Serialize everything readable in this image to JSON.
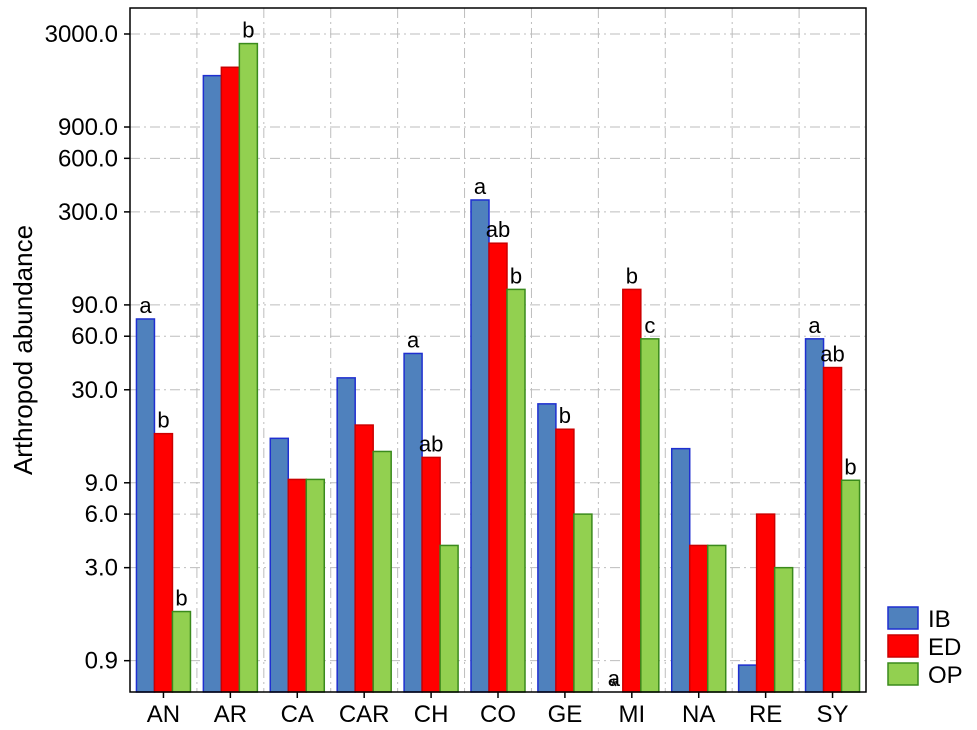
{
  "chart_data": {
    "type": "bar",
    "title": "",
    "xlabel": "",
    "ylabel": "Arthropod abundance",
    "yscale": "log",
    "ylim": [
      0.6,
      4200
    ],
    "y_ticks": [
      0.9,
      3.0,
      6.0,
      9.0,
      30.0,
      60.0,
      90.0,
      300.0,
      600.0,
      900.0,
      3000.0
    ],
    "y_tick_labels": [
      "0.9",
      "3.0",
      "6.0",
      "9.0",
      "30.0",
      "60.0",
      "90.0",
      "300.0",
      "600.0",
      "900.0",
      "3000.0"
    ],
    "grid": true,
    "legend_position": "bottom-right",
    "categories": [
      "AN",
      "AR",
      "CA",
      "CAR",
      "CH",
      "CO",
      "GE",
      "MI",
      "NA",
      "RE",
      "SY"
    ],
    "series": [
      {
        "name": "IB",
        "color": "#4f81bd",
        "edge": "#1f2fd0",
        "values": [
          75,
          1750,
          16,
          35,
          48,
          350,
          25,
          0,
          14,
          0.85,
          58
        ],
        "annotations": [
          "a",
          "",
          "",
          "",
          "a",
          "a",
          "",
          "a",
          "",
          "",
          "a"
        ]
      },
      {
        "name": "ED",
        "color": "#ff0000",
        "edge": "#cc0000",
        "values": [
          17,
          1950,
          9.4,
          19,
          12.5,
          200,
          18,
          110,
          4.0,
          6.0,
          40
        ],
        "annotations": [
          "b",
          "",
          "",
          "",
          "ab",
          "ab",
          "b",
          "b",
          "",
          "",
          "ab"
        ]
      },
      {
        "name": "OP",
        "color": "#92d050",
        "edge": "#3a8a1c",
        "values": [
          1.7,
          2650,
          9.4,
          13.5,
          4.0,
          110,
          6.0,
          58,
          4.0,
          3.0,
          9.3
        ],
        "annotations": [
          "b",
          "b",
          "",
          "",
          "",
          "b",
          "",
          "c",
          "",
          "",
          "b"
        ]
      }
    ],
    "markers": [
      {
        "category": "MI",
        "series": "IB",
        "text": "*"
      }
    ]
  }
}
